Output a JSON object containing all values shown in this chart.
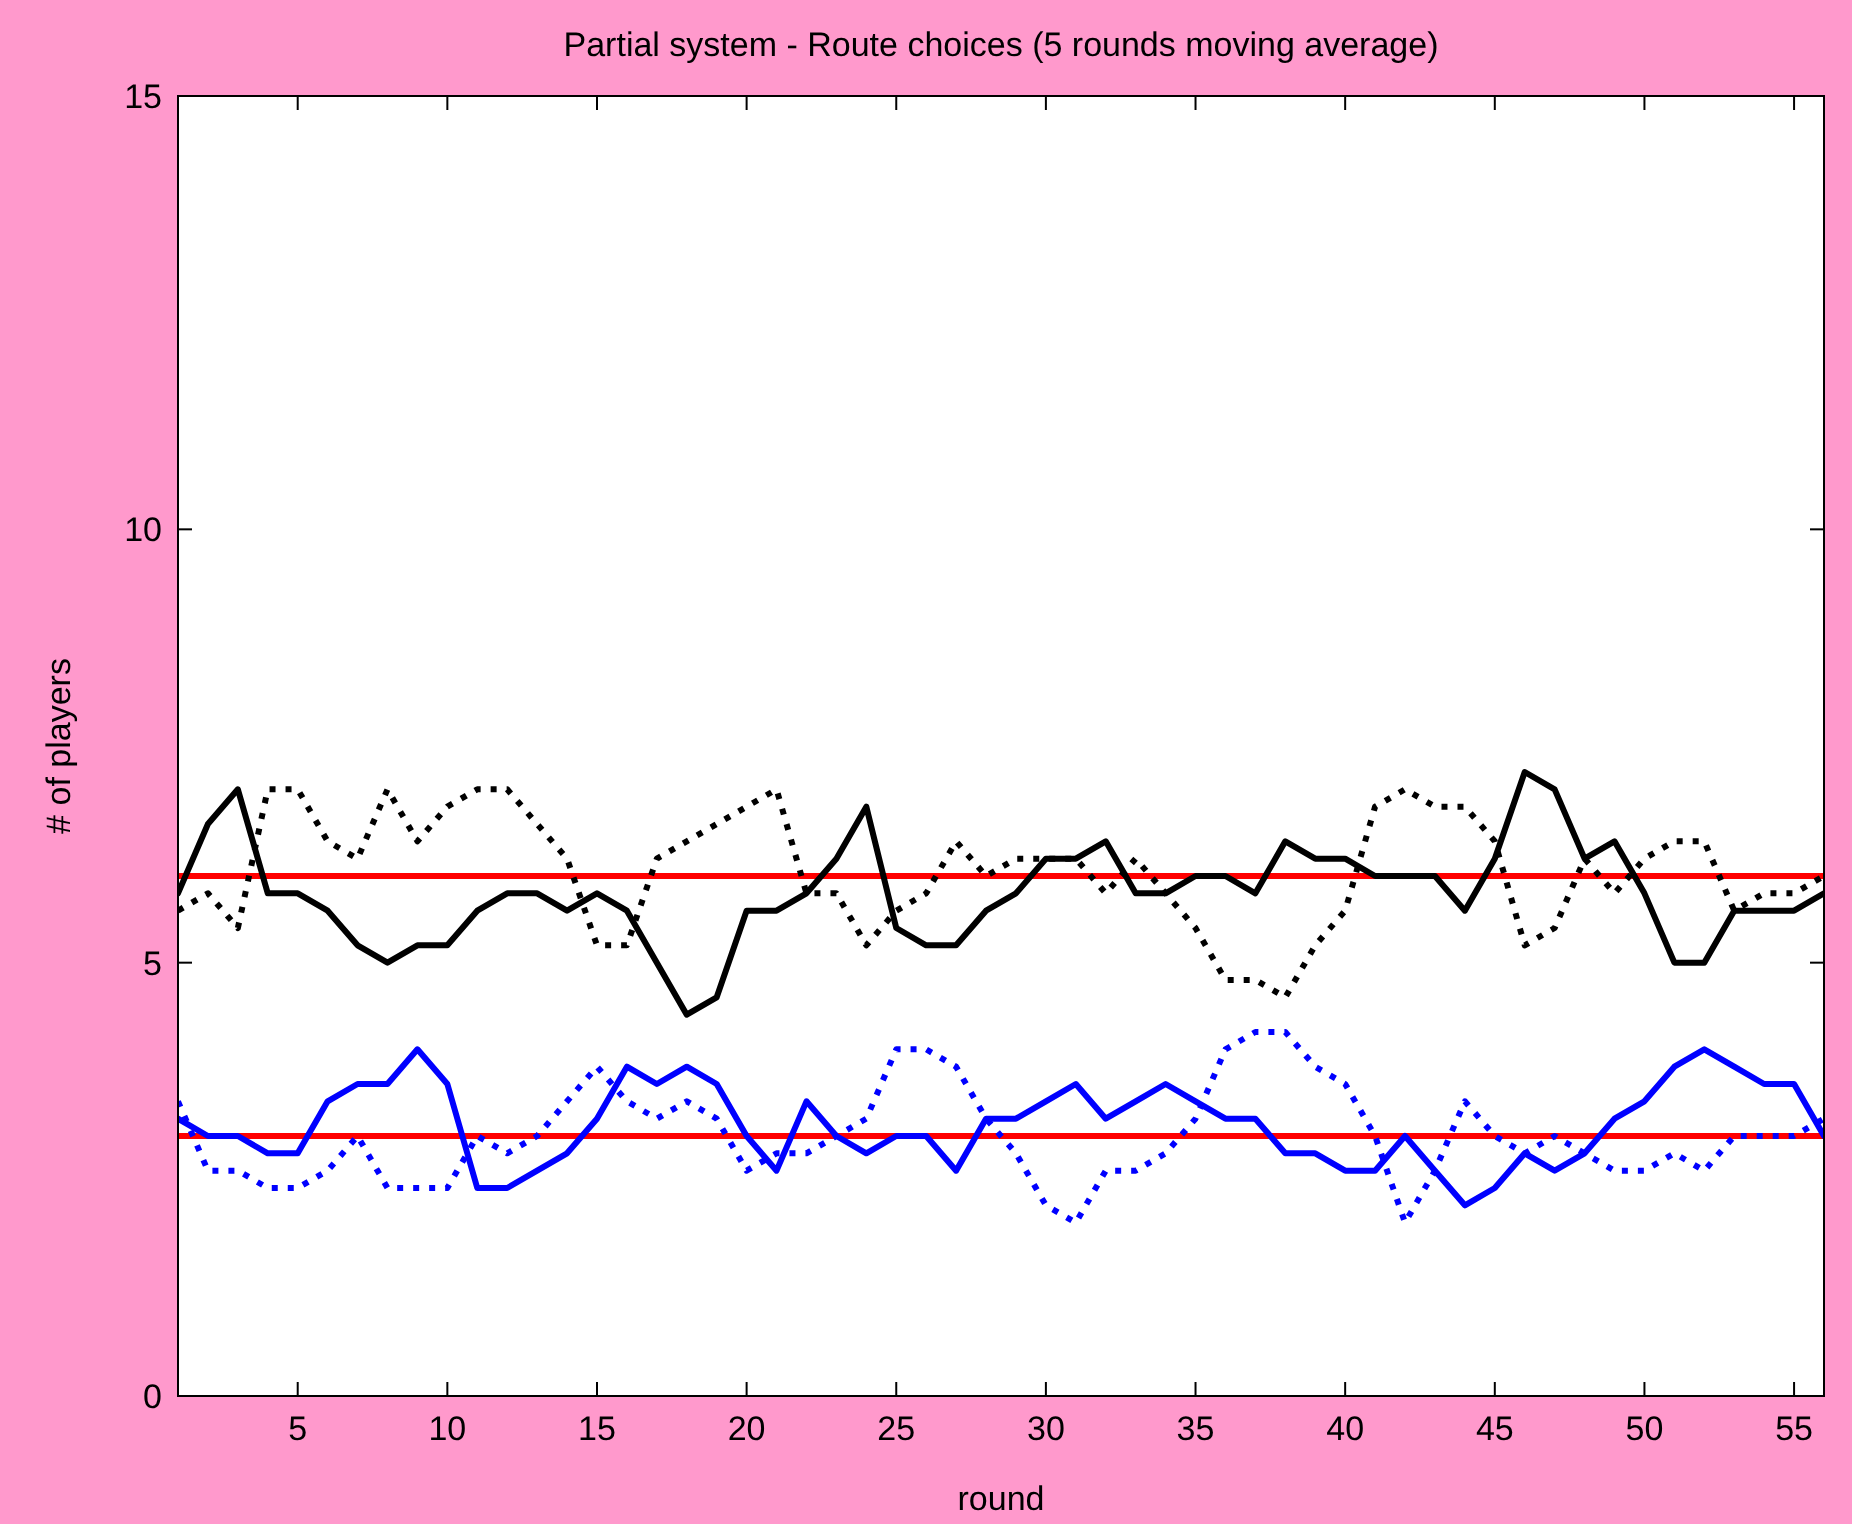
{
  "chart_data": {
    "type": "line",
    "title": "Partial system - Route choices (5 rounds moving average)",
    "xlabel": "round",
    "ylabel": "# of players",
    "x": [
      1,
      2,
      3,
      4,
      5,
      6,
      7,
      8,
      9,
      10,
      11,
      12,
      13,
      14,
      15,
      16,
      17,
      18,
      19,
      20,
      21,
      22,
      23,
      24,
      25,
      26,
      27,
      28,
      29,
      30,
      31,
      32,
      33,
      34,
      35,
      36,
      37,
      38,
      39,
      40,
      41,
      42,
      43,
      44,
      45,
      46,
      47,
      48,
      49,
      50,
      51,
      52,
      53,
      54,
      55,
      56
    ],
    "series": [
      {
        "color": "#000000",
        "line_style": "solid",
        "values": [
          5.8,
          6.6,
          7.0,
          5.8,
          5.8,
          5.6,
          5.2,
          5.0,
          5.2,
          5.2,
          5.6,
          5.8,
          5.8,
          5.6,
          5.8,
          5.6,
          5.0,
          4.4,
          4.6,
          5.6,
          5.6,
          5.8,
          6.2,
          6.8,
          5.4,
          5.2,
          5.2,
          5.6,
          5.8,
          6.2,
          6.2,
          6.4,
          5.8,
          5.8,
          6.0,
          6.0,
          5.8,
          6.4,
          6.2,
          6.2,
          6.0,
          6.0,
          6.0,
          5.6,
          6.2,
          7.2,
          7.0,
          6.2,
          6.4,
          5.8,
          5.0,
          5.0,
          5.6,
          5.6,
          5.6,
          5.8
        ]
      },
      {
        "color": "#000000",
        "line_style": "dotted",
        "values": [
          5.6,
          5.8,
          5.4,
          7.0,
          7.0,
          6.4,
          6.2,
          7.0,
          6.4,
          6.8,
          7.0,
          7.0,
          6.6,
          6.2,
          5.2,
          5.2,
          6.2,
          6.4,
          6.6,
          6.8,
          7.0,
          5.8,
          5.8,
          5.2,
          5.6,
          5.8,
          6.4,
          6.0,
          6.2,
          6.2,
          6.2,
          5.8,
          6.2,
          5.8,
          5.4,
          4.8,
          4.8,
          4.6,
          5.2,
          5.6,
          6.8,
          7.0,
          6.8,
          6.8,
          6.4,
          5.2,
          5.4,
          6.2,
          5.8,
          6.2,
          6.4,
          6.4,
          5.6,
          5.8,
          5.8,
          6.0
        ]
      },
      {
        "color": "#0000ff",
        "line_style": "solid",
        "values": [
          3.2,
          3.0,
          3.0,
          2.8,
          2.8,
          3.4,
          3.6,
          3.6,
          4.0,
          3.6,
          2.4,
          2.4,
          2.6,
          2.8,
          3.2,
          3.8,
          3.6,
          3.8,
          3.6,
          3.0,
          2.6,
          3.4,
          3.0,
          2.8,
          3.0,
          3.0,
          2.6,
          3.2,
          3.2,
          3.4,
          3.6,
          3.2,
          3.4,
          3.6,
          3.4,
          3.2,
          3.2,
          2.8,
          2.8,
          2.6,
          2.6,
          3.0,
          2.6,
          2.2,
          2.4,
          2.8,
          2.6,
          2.8,
          3.2,
          3.4,
          3.8,
          4.0,
          3.8,
          3.6,
          3.6,
          3.0
        ]
      },
      {
        "color": "#0000ff",
        "line_style": "dotted",
        "values": [
          3.4,
          2.6,
          2.6,
          2.4,
          2.4,
          2.6,
          3.0,
          2.4,
          2.4,
          2.4,
          3.0,
          2.8,
          3.0,
          3.4,
          3.8,
          3.4,
          3.2,
          3.4,
          3.2,
          2.6,
          2.8,
          2.8,
          3.0,
          3.2,
          4.0,
          4.0,
          3.8,
          3.2,
          2.8,
          2.2,
          2.0,
          2.6,
          2.6,
          2.8,
          3.2,
          4.0,
          4.2,
          4.2,
          3.8,
          3.6,
          3.0,
          2.0,
          2.6,
          3.4,
          3.0,
          2.8,
          3.0,
          2.8,
          2.6,
          2.6,
          2.8,
          2.6,
          3.0,
          3.0,
          3.0,
          3.2
        ]
      }
    ],
    "ref_lines": [
      {
        "axis": "y",
        "value": 6,
        "color": "#ff0000"
      },
      {
        "axis": "y",
        "value": 3,
        "color": "#ff0000"
      }
    ],
    "xlim": [
      1,
      56
    ],
    "xticks": [
      5,
      10,
      15,
      20,
      25,
      30,
      35,
      40,
      45,
      50,
      55
    ],
    "ylim": [
      0,
      15
    ],
    "yticks": [
      0,
      5,
      10,
      15
    ]
  }
}
